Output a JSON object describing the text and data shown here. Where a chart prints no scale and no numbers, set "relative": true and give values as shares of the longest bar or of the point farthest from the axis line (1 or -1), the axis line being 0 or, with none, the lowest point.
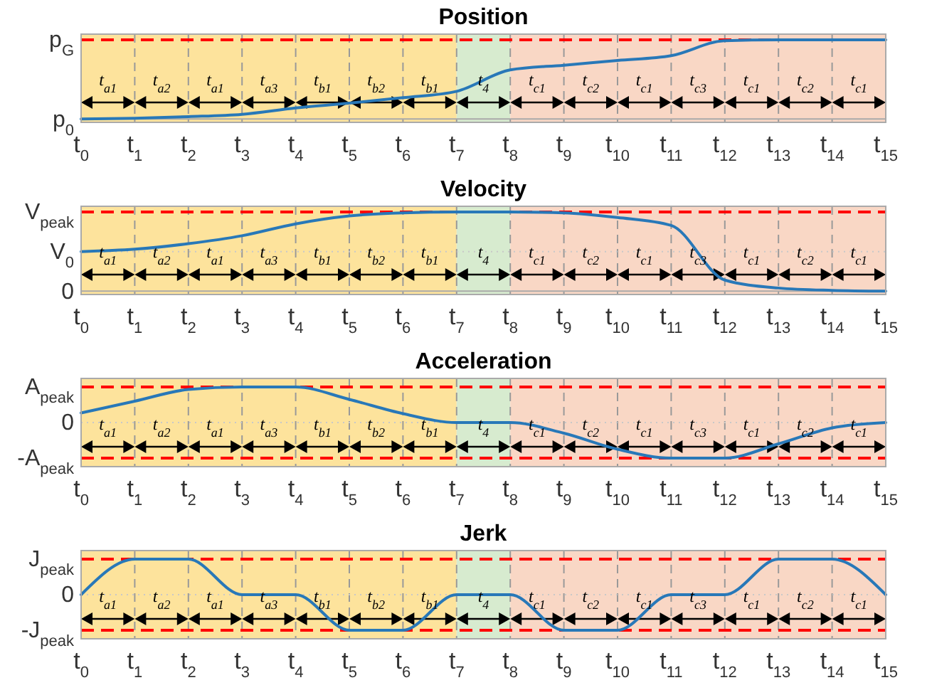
{
  "chart_data": [
    {
      "type": "line",
      "title": "Position",
      "relative": true,
      "grid": "x",
      "categories": [
        "t$_{0}$",
        "t$_{1}$",
        "t$_{2}$",
        "t$_{3}$",
        "t$_{4}$",
        "t$_{5}$",
        "t$_{6}$",
        "t$_{7}$",
        "t$_{8}$",
        "t$_{9}$",
        "t$_{10}$",
        "t$_{11}$",
        "t$_{12}$",
        "t$_{13}$",
        "t$_{14}$",
        "t$_{15}$"
      ],
      "bands": [
        {
          "axis": "x",
          "from": "t$_{0}$",
          "to": "t$_{7}$",
          "color": "#fde39c"
        },
        {
          "axis": "x",
          "from": "t$_{7}$",
          "to": "t$_{8}$",
          "color": "#d7ebcf"
        },
        {
          "axis": "x",
          "from": "t$_{8}$",
          "to": "t$_{15}$",
          "color": "#f9d7c5"
        }
      ],
      "ref_lines": [
        {
          "axis": "y",
          "value": 1,
          "label": "p$_{G}$",
          "color": "#ff0000",
          "line_style": "dashed"
        },
        {
          "axis": "y",
          "value": 0,
          "label": "p$_{0}$",
          "color": "#aaaaaa",
          "line_style": "solid"
        }
      ],
      "series": [
        {
          "color": "#2878b8",
          "line_style": "solid",
          "values": [
            0,
            0.01,
            0.03,
            0.06,
            0.14,
            0.2,
            0.27,
            0.35,
            0.62,
            0.68,
            0.74,
            0.8,
            0.99,
            1,
            1,
            1
          ]
        }
      ],
      "annotations": [
        "t$_{a1}$",
        "t$_{a2}$",
        "t$_{a1}$",
        "t$_{a3}$",
        "t$_{b1}$",
        "t$_{b2}$",
        "t$_{b1}$",
        "t$_{4}$",
        "t$_{c1}$",
        "t$_{c2}$",
        "t$_{c1}$",
        "t$_{c3}$",
        "t$_{c1}$",
        "t$_{c2}$",
        "t$_{c1}$"
      ]
    },
    {
      "type": "line",
      "title": "Velocity",
      "relative": true,
      "grid": "x",
      "categories": [
        "t$_{0}$",
        "t$_{1}$",
        "t$_{2}$",
        "t$_{3}$",
        "t$_{4}$",
        "t$_{5}$",
        "t$_{6}$",
        "t$_{7}$",
        "t$_{8}$",
        "t$_{9}$",
        "t$_{10}$",
        "t$_{11}$",
        "t$_{12}$",
        "t$_{13}$",
        "t$_{14}$",
        "t$_{15}$"
      ],
      "bands": [
        {
          "axis": "x",
          "from": "t$_{0}$",
          "to": "t$_{7}$",
          "color": "#fde39c"
        },
        {
          "axis": "x",
          "from": "t$_{7}$",
          "to": "t$_{8}$",
          "color": "#d7ebcf"
        },
        {
          "axis": "x",
          "from": "t$_{8}$",
          "to": "t$_{15}$",
          "color": "#f9d7c5"
        }
      ],
      "ref_lines": [
        {
          "axis": "y",
          "value": 1,
          "label": "V$_{peak}$",
          "color": "#ff0000",
          "line_style": "dashed"
        },
        {
          "axis": "y",
          "value": 0.5,
          "label": "V$_{0}$",
          "color": "#c8c8c8",
          "line_style": "dotted"
        },
        {
          "axis": "y",
          "value": 0,
          "label": "0",
          "color": "#aaaaaa",
          "line_style": "solid"
        }
      ],
      "series": [
        {
          "color": "#2878b8",
          "line_style": "solid",
          "values": [
            0.5,
            0.53,
            0.6,
            0.7,
            0.85,
            0.95,
            0.99,
            1,
            1,
            0.99,
            0.93,
            0.83,
            0.14,
            0.04,
            0.01,
            0
          ]
        }
      ],
      "annotations": [
        "t$_{a1}$",
        "t$_{a2}$",
        "t$_{a1}$",
        "t$_{a3}$",
        "t$_{b1}$",
        "t$_{b2}$",
        "t$_{b1}$",
        "t$_{4}$",
        "t$_{c1}$",
        "t$_{c2}$",
        "t$_{c1}$",
        "t$_{c3}$",
        "t$_{c1}$",
        "t$_{c2}$",
        "t$_{c1}$"
      ]
    },
    {
      "type": "line",
      "title": "Acceleration",
      "relative": true,
      "grid": "x",
      "categories": [
        "t$_{0}$",
        "t$_{1}$",
        "t$_{2}$",
        "t$_{3}$",
        "t$_{4}$",
        "t$_{5}$",
        "t$_{6}$",
        "t$_{7}$",
        "t$_{8}$",
        "t$_{9}$",
        "t$_{10}$",
        "t$_{11}$",
        "t$_{12}$",
        "t$_{13}$",
        "t$_{14}$",
        "t$_{15}$"
      ],
      "bands": [
        {
          "axis": "x",
          "from": "t$_{0}$",
          "to": "t$_{7}$",
          "color": "#fde39c"
        },
        {
          "axis": "x",
          "from": "t$_{7}$",
          "to": "t$_{8}$",
          "color": "#d7ebcf"
        },
        {
          "axis": "x",
          "from": "t$_{8}$",
          "to": "t$_{15}$",
          "color": "#f9d7c5"
        }
      ],
      "ref_lines": [
        {
          "axis": "y",
          "value": 1,
          "label": "A$_{peak}$",
          "color": "#ff0000",
          "line_style": "dashed"
        },
        {
          "axis": "y",
          "value": 0,
          "label": "0",
          "color": "#c8c8c8",
          "line_style": "dotted"
        },
        {
          "axis": "y",
          "value": -1,
          "label": "-A$_{peak}$",
          "color": "#ff0000",
          "line_style": "dashed"
        }
      ],
      "series": [
        {
          "color": "#2878b8",
          "line_style": "solid",
          "values": [
            0.27,
            0.6,
            0.93,
            1,
            1,
            0.65,
            0.25,
            0,
            0,
            -0.3,
            -0.75,
            -1,
            -1,
            -0.6,
            -0.15,
            0
          ]
        }
      ],
      "annotations": [
        "t$_{a1}$",
        "t$_{a2}$",
        "t$_{a1}$",
        "t$_{a3}$",
        "t$_{b1}$",
        "t$_{b2}$",
        "t$_{b1}$",
        "t$_{4}$",
        "t$_{c1}$",
        "t$_{c2}$",
        "t$_{c1}$",
        "t$_{c3}$",
        "t$_{c1}$",
        "t$_{c2}$",
        "t$_{c1}$"
      ]
    },
    {
      "type": "line",
      "title": "Jerk",
      "relative": true,
      "grid": "x",
      "categories": [
        "t$_{0}$",
        "t$_{1}$",
        "t$_{2}$",
        "t$_{3}$",
        "t$_{4}$",
        "t$_{5}$",
        "t$_{6}$",
        "t$_{7}$",
        "t$_{8}$",
        "t$_{9}$",
        "t$_{10}$",
        "t$_{11}$",
        "t$_{12}$",
        "t$_{13}$",
        "t$_{14}$",
        "t$_{15}$"
      ],
      "bands": [
        {
          "axis": "x",
          "from": "t$_{0}$",
          "to": "t$_{7}$",
          "color": "#fde39c"
        },
        {
          "axis": "x",
          "from": "t$_{7}$",
          "to": "t$_{8}$",
          "color": "#d7ebcf"
        },
        {
          "axis": "x",
          "from": "t$_{8}$",
          "to": "t$_{15}$",
          "color": "#f9d7c5"
        }
      ],
      "ref_lines": [
        {
          "axis": "y",
          "value": 1,
          "label": "J$_{peak}$",
          "color": "#ff0000",
          "line_style": "dashed"
        },
        {
          "axis": "y",
          "value": 0,
          "label": "0",
          "color": "#c8c8c8",
          "line_style": "dotted"
        },
        {
          "axis": "y",
          "value": -1,
          "label": "-J$_{peak}$",
          "color": "#ff0000",
          "line_style": "dashed"
        }
      ],
      "series": [
        {
          "color": "#2878b8",
          "line_style": "solid",
          "values": [
            0,
            1,
            1,
            0,
            0,
            -1,
            -1,
            0,
            0,
            -1,
            -1,
            0,
            0,
            1,
            1,
            0
          ]
        }
      ],
      "annotations": [
        "t$_{a1}$",
        "t$_{a2}$",
        "t$_{a1}$",
        "t$_{a3}$",
        "t$_{b1}$",
        "t$_{b2}$",
        "t$_{b1}$",
        "t$_{4}$",
        "t$_{c1}$",
        "t$_{c2}$",
        "t$_{c1}$",
        "t$_{c3}$",
        "t$_{c1}$",
        "t$_{c2}$",
        "t$_{c1}$"
      ]
    }
  ]
}
